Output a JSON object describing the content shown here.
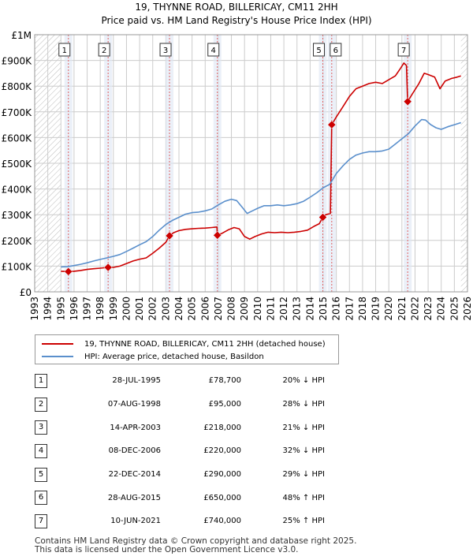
{
  "title_line1": "19, THYNNE ROAD, BILLERICAY, CM11 2HH",
  "title_line2": "Price paid vs. HM Land Registry's House Price Index (HPI)",
  "colors": {
    "property": "#cc0000",
    "hpi": "#5a8fcc",
    "grid": "#cccccc",
    "marker": "#cc0000",
    "sale_line": "#e06060",
    "hatch": "#bbbbbb",
    "highlight": "#dde6f4"
  },
  "chart_data": {
    "type": "line",
    "xlim": [
      1993,
      2026
    ],
    "ylim": [
      0,
      1000000
    ],
    "y_ticks": [
      0,
      100000,
      200000,
      300000,
      400000,
      500000,
      600000,
      700000,
      800000,
      900000,
      1000000
    ],
    "y_tick_labels": [
      "£0",
      "£100K",
      "£200K",
      "£300K",
      "£400K",
      "£500K",
      "£600K",
      "£700K",
      "£800K",
      "£900K",
      "£1M"
    ],
    "x_ticks": [
      1993,
      1994,
      1995,
      1996,
      1997,
      1998,
      1999,
      2000,
      2001,
      2002,
      2003,
      2004,
      2005,
      2006,
      2007,
      2008,
      2009,
      2010,
      2011,
      2012,
      2013,
      2014,
      2015,
      2016,
      2017,
      2018,
      2019,
      2020,
      2021,
      2022,
      2023,
      2024,
      2025,
      2026
    ],
    "data_start": 1995.0,
    "data_end": 2025.5,
    "series": [
      {
        "name": "19, THYNNE ROAD, BILLERICAY, CM11 2HH (detached house)",
        "points": [
          [
            1995.0,
            80000
          ],
          [
            1995.57,
            78700
          ],
          [
            1996.0,
            80000
          ],
          [
            1996.5,
            83000
          ],
          [
            1997.0,
            87000
          ],
          [
            1997.5,
            90000
          ],
          [
            1998.0,
            92000
          ],
          [
            1998.6,
            95000
          ],
          [
            1999.0,
            95000
          ],
          [
            1999.5,
            100000
          ],
          [
            2000.0,
            110000
          ],
          [
            2000.5,
            120000
          ],
          [
            2001.0,
            127000
          ],
          [
            2001.5,
            132000
          ],
          [
            2002.0,
            150000
          ],
          [
            2002.5,
            170000
          ],
          [
            2003.0,
            193000
          ],
          [
            2003.28,
            218000
          ],
          [
            2003.6,
            230000
          ],
          [
            2004.0,
            238000
          ],
          [
            2004.5,
            243000
          ],
          [
            2005.0,
            245000
          ],
          [
            2005.5,
            247000
          ],
          [
            2006.0,
            248000
          ],
          [
            2006.5,
            250000
          ],
          [
            2006.9,
            252000
          ],
          [
            2006.93,
            220000
          ],
          [
            2007.3,
            228000
          ],
          [
            2007.8,
            242000
          ],
          [
            2008.2,
            250000
          ],
          [
            2008.6,
            245000
          ],
          [
            2009.0,
            215000
          ],
          [
            2009.4,
            205000
          ],
          [
            2009.8,
            215000
          ],
          [
            2010.3,
            225000
          ],
          [
            2010.8,
            232000
          ],
          [
            2011.3,
            230000
          ],
          [
            2011.8,
            232000
          ],
          [
            2012.3,
            230000
          ],
          [
            2012.8,
            232000
          ],
          [
            2013.3,
            235000
          ],
          [
            2013.8,
            240000
          ],
          [
            2014.3,
            255000
          ],
          [
            2014.7,
            265000
          ],
          [
            2014.97,
            290000
          ],
          [
            2015.2,
            300000
          ],
          [
            2015.55,
            305000
          ],
          [
            2015.65,
            650000
          ],
          [
            2016.0,
            680000
          ],
          [
            2016.5,
            720000
          ],
          [
            2017.0,
            760000
          ],
          [
            2017.5,
            790000
          ],
          [
            2018.0,
            800000
          ],
          [
            2018.5,
            810000
          ],
          [
            2019.0,
            815000
          ],
          [
            2019.5,
            810000
          ],
          [
            2020.0,
            825000
          ],
          [
            2020.5,
            840000
          ],
          [
            2020.9,
            870000
          ],
          [
            2021.15,
            890000
          ],
          [
            2021.35,
            880000
          ],
          [
            2021.44,
            740000
          ],
          [
            2021.8,
            770000
          ],
          [
            2022.3,
            810000
          ],
          [
            2022.7,
            850000
          ],
          [
            2023.0,
            845000
          ],
          [
            2023.5,
            835000
          ],
          [
            2023.9,
            790000
          ],
          [
            2024.3,
            820000
          ],
          [
            2024.8,
            830000
          ],
          [
            2025.2,
            835000
          ],
          [
            2025.5,
            840000
          ]
        ]
      },
      {
        "name": "HPI: Average price, detached house, Basildon",
        "points": [
          [
            1995.0,
            97000
          ],
          [
            1995.5,
            98000
          ],
          [
            1996.0,
            102000
          ],
          [
            1996.5,
            107000
          ],
          [
            1997.0,
            113000
          ],
          [
            1997.5,
            120000
          ],
          [
            1998.0,
            126000
          ],
          [
            1998.5,
            132000
          ],
          [
            1999.0,
            138000
          ],
          [
            1999.5,
            145000
          ],
          [
            2000.0,
            157000
          ],
          [
            2000.5,
            170000
          ],
          [
            2001.0,
            183000
          ],
          [
            2001.5,
            195000
          ],
          [
            2002.0,
            215000
          ],
          [
            2002.5,
            240000
          ],
          [
            2003.0,
            262000
          ],
          [
            2003.5,
            278000
          ],
          [
            2004.0,
            290000
          ],
          [
            2004.5,
            302000
          ],
          [
            2005.0,
            308000
          ],
          [
            2005.5,
            310000
          ],
          [
            2006.0,
            315000
          ],
          [
            2006.5,
            322000
          ],
          [
            2007.0,
            338000
          ],
          [
            2007.5,
            352000
          ],
          [
            2008.0,
            360000
          ],
          [
            2008.4,
            355000
          ],
          [
            2008.8,
            330000
          ],
          [
            2009.2,
            305000
          ],
          [
            2009.6,
            315000
          ],
          [
            2010.0,
            325000
          ],
          [
            2010.5,
            335000
          ],
          [
            2011.0,
            335000
          ],
          [
            2011.5,
            338000
          ],
          [
            2012.0,
            335000
          ],
          [
            2012.5,
            338000
          ],
          [
            2013.0,
            343000
          ],
          [
            2013.5,
            352000
          ],
          [
            2014.0,
            368000
          ],
          [
            2014.5,
            385000
          ],
          [
            2015.0,
            405000
          ],
          [
            2015.5,
            418000
          ],
          [
            2016.0,
            460000
          ],
          [
            2016.5,
            490000
          ],
          [
            2017.0,
            515000
          ],
          [
            2017.5,
            532000
          ],
          [
            2018.0,
            540000
          ],
          [
            2018.5,
            545000
          ],
          [
            2019.0,
            545000
          ],
          [
            2019.5,
            548000
          ],
          [
            2020.0,
            555000
          ],
          [
            2020.5,
            575000
          ],
          [
            2021.0,
            595000
          ],
          [
            2021.5,
            615000
          ],
          [
            2022.0,
            645000
          ],
          [
            2022.5,
            670000
          ],
          [
            2022.8,
            668000
          ],
          [
            2023.2,
            650000
          ],
          [
            2023.6,
            638000
          ],
          [
            2024.0,
            632000
          ],
          [
            2024.5,
            642000
          ],
          [
            2025.0,
            650000
          ],
          [
            2025.5,
            658000
          ]
        ]
      }
    ],
    "sales": [
      {
        "num": "1",
        "x": 1995.57,
        "price": 78700
      },
      {
        "num": "2",
        "x": 1998.6,
        "price": 95000
      },
      {
        "num": "3",
        "x": 2003.28,
        "price": 218000
      },
      {
        "num": "4",
        "x": 2006.93,
        "price": 220000
      },
      {
        "num": "5",
        "x": 2014.97,
        "price": 290000
      },
      {
        "num": "6",
        "x": 2015.65,
        "price": 650000
      },
      {
        "num": "7",
        "x": 2021.44,
        "price": 740000
      }
    ]
  },
  "legend": {
    "property_label": "19, THYNNE ROAD, BILLERICAY, CM11 2HH (detached house)",
    "hpi_label": "HPI: Average price, detached house, Basildon"
  },
  "table": [
    {
      "num": "1",
      "date": "28-JUL-1995",
      "price": "£78,700",
      "hpi": "20% ↓ HPI"
    },
    {
      "num": "2",
      "date": "07-AUG-1998",
      "price": "£95,000",
      "hpi": "28% ↓ HPI"
    },
    {
      "num": "3",
      "date": "14-APR-2003",
      "price": "£218,000",
      "hpi": "21% ↓ HPI"
    },
    {
      "num": "4",
      "date": "08-DEC-2006",
      "price": "£220,000",
      "hpi": "32% ↓ HPI"
    },
    {
      "num": "5",
      "date": "22-DEC-2014",
      "price": "£290,000",
      "hpi": "29% ↓ HPI"
    },
    {
      "num": "6",
      "date": "28-AUG-2015",
      "price": "£650,000",
      "hpi": "48% ↑ HPI"
    },
    {
      "num": "7",
      "date": "10-JUN-2021",
      "price": "£740,000",
      "hpi": "25% ↑ HPI"
    }
  ],
  "footer_line1": "Contains HM Land Registry data © Crown copyright and database right 2025.",
  "footer_line2": "This data is licensed under the Open Government Licence v3.0."
}
